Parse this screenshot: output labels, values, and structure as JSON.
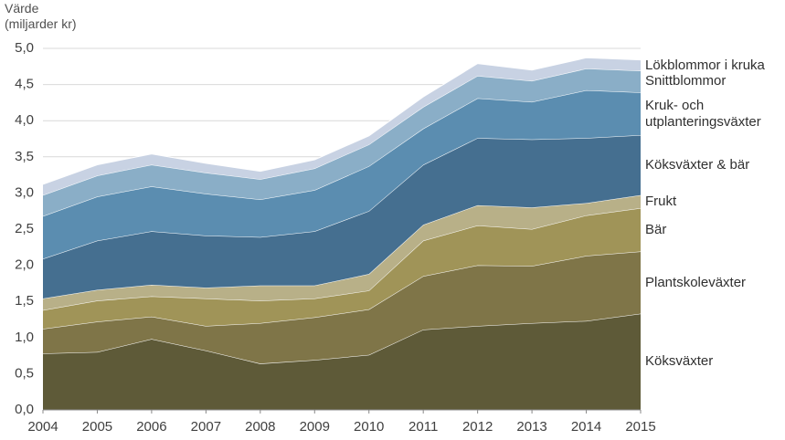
{
  "chart_data": {
    "type": "stacked-area",
    "y_label": "Värde\n(miljarder kr)",
    "x": [
      2004,
      2005,
      2006,
      2007,
      2008,
      2009,
      2010,
      2011,
      2012,
      2013,
      2014,
      2015
    ],
    "xlim": [
      2004,
      2015
    ],
    "xticks": [
      2004,
      2005,
      2006,
      2007,
      2008,
      2009,
      2010,
      2011,
      2012,
      2013,
      2014,
      2015
    ],
    "ylim": [
      0,
      5
    ],
    "yticks": [
      {
        "value": 0,
        "label": "0,0"
      },
      {
        "value": 0.5,
        "label": "0,5"
      },
      {
        "value": 1,
        "label": "1,0"
      },
      {
        "value": 1.5,
        "label": "1,5"
      },
      {
        "value": 2,
        "label": "2,0"
      },
      {
        "value": 2.5,
        "label": "2,5"
      },
      {
        "value": 3,
        "label": "3,0"
      },
      {
        "value": 3.5,
        "label": "3,5"
      },
      {
        "value": 4,
        "label": "4,0"
      },
      {
        "value": 4.5,
        "label": "4,5"
      },
      {
        "value": 5,
        "label": "5,0"
      }
    ],
    "grid": true,
    "series": [
      {
        "name": "Köksväxter",
        "color": "#5e5a38",
        "values": [
          0.78,
          0.8,
          0.98,
          0.82,
          0.64,
          0.69,
          0.76,
          1.11,
          1.16,
          1.2,
          1.23,
          1.33
        ]
      },
      {
        "name": "Plantskoleväxter",
        "color": "#7f7548",
        "values": [
          0.34,
          0.42,
          0.31,
          0.34,
          0.56,
          0.59,
          0.63,
          0.74,
          0.84,
          0.79,
          0.9,
          0.86
        ]
      },
      {
        "name": "Bär",
        "color": "#a09458",
        "values": [
          0.26,
          0.29,
          0.28,
          0.38,
          0.31,
          0.26,
          0.26,
          0.49,
          0.55,
          0.51,
          0.56,
          0.6
        ]
      },
      {
        "name": "Frukt",
        "color": "#b8b088",
        "values": [
          0.16,
          0.15,
          0.16,
          0.15,
          0.21,
          0.18,
          0.23,
          0.22,
          0.28,
          0.3,
          0.17,
          0.18
        ]
      },
      {
        "name": "Köksväxter & bär",
        "color": "#456f90",
        "values": [
          0.55,
          0.68,
          0.74,
          0.72,
          0.67,
          0.75,
          0.87,
          0.83,
          0.93,
          0.94,
          0.9,
          0.83
        ]
      },
      {
        "name": "Kruk- och\nutplanteringsväxter",
        "color": "#5b8db0",
        "values": [
          0.59,
          0.61,
          0.62,
          0.58,
          0.52,
          0.57,
          0.62,
          0.5,
          0.55,
          0.52,
          0.66,
          0.59
        ]
      },
      {
        "name": "Snittblommor",
        "color": "#8aaec7",
        "values": [
          0.29,
          0.29,
          0.3,
          0.29,
          0.28,
          0.3,
          0.3,
          0.3,
          0.31,
          0.29,
          0.3,
          0.3
        ]
      },
      {
        "name": "Lökblommor i kruka",
        "color": "#c8d2e3",
        "values": [
          0.15,
          0.15,
          0.15,
          0.13,
          0.11,
          0.12,
          0.12,
          0.14,
          0.17,
          0.15,
          0.15,
          0.15
        ]
      }
    ]
  }
}
